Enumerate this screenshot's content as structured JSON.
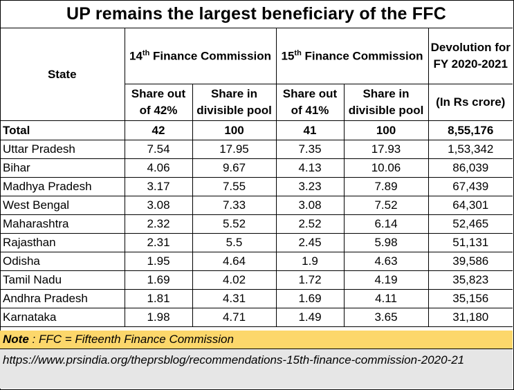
{
  "title": "UP remains the largest beneficiary of the FFC",
  "headers": {
    "state": "State",
    "fc14": "Finance Commission",
    "fc14_num": "14",
    "fc15": "Finance Commission",
    "fc15_num": "15",
    "ord": "th",
    "devolution": "Devolution for FY 2020-2021",
    "share42": "Share out of 42%",
    "share_pool_14": "Share in divisible pool",
    "share41": "Share out of 41%",
    "share_pool_15": "Share in divisible pool",
    "rs_crore": "(In Rs crore)"
  },
  "total": [
    "Total",
    "42",
    "100",
    "41",
    "100",
    "8,55,176"
  ],
  "rows": [
    [
      "Uttar Pradesh",
      "7.54",
      "17.95",
      "7.35",
      "17.93",
      "1,53,342"
    ],
    [
      "Bihar",
      "4.06",
      "9.67",
      "4.13",
      "10.06",
      "86,039"
    ],
    [
      "Madhya Pradesh",
      "3.17",
      "7.55",
      "3.23",
      "7.89",
      "67,439"
    ],
    [
      "West Bengal",
      "3.08",
      "7.33",
      "3.08",
      "7.52",
      "64,301"
    ],
    [
      "Maharashtra",
      "2.32",
      "5.52",
      "2.52",
      "6.14",
      "52,465"
    ],
    [
      "Rajasthan",
      "2.31",
      "5.5",
      "2.45",
      "5.98",
      "51,131"
    ],
    [
      "Odisha",
      "1.95",
      "4.64",
      "1.9",
      "4.63",
      "39,586"
    ],
    [
      "Tamil Nadu",
      "1.69",
      "4.02",
      "1.72",
      "4.19",
      "35,823"
    ],
    [
      "Andhra Pradesh",
      "1.81",
      "4.31",
      "1.69",
      "4.11",
      "35,156"
    ],
    [
      "Karnataka",
      "1.98",
      "4.71",
      "1.49",
      "3.65",
      "31,180"
    ]
  ],
  "note": {
    "label": "Note",
    "text": " : FFC = Fifteenth Finance Commission"
  },
  "source": "https://www.prsindia.org/theprsblog/recommendations-15th-finance-commission-2020-21",
  "colors": {
    "note_bg": "#fcd76b",
    "source_bg": "#e6e6e6"
  }
}
